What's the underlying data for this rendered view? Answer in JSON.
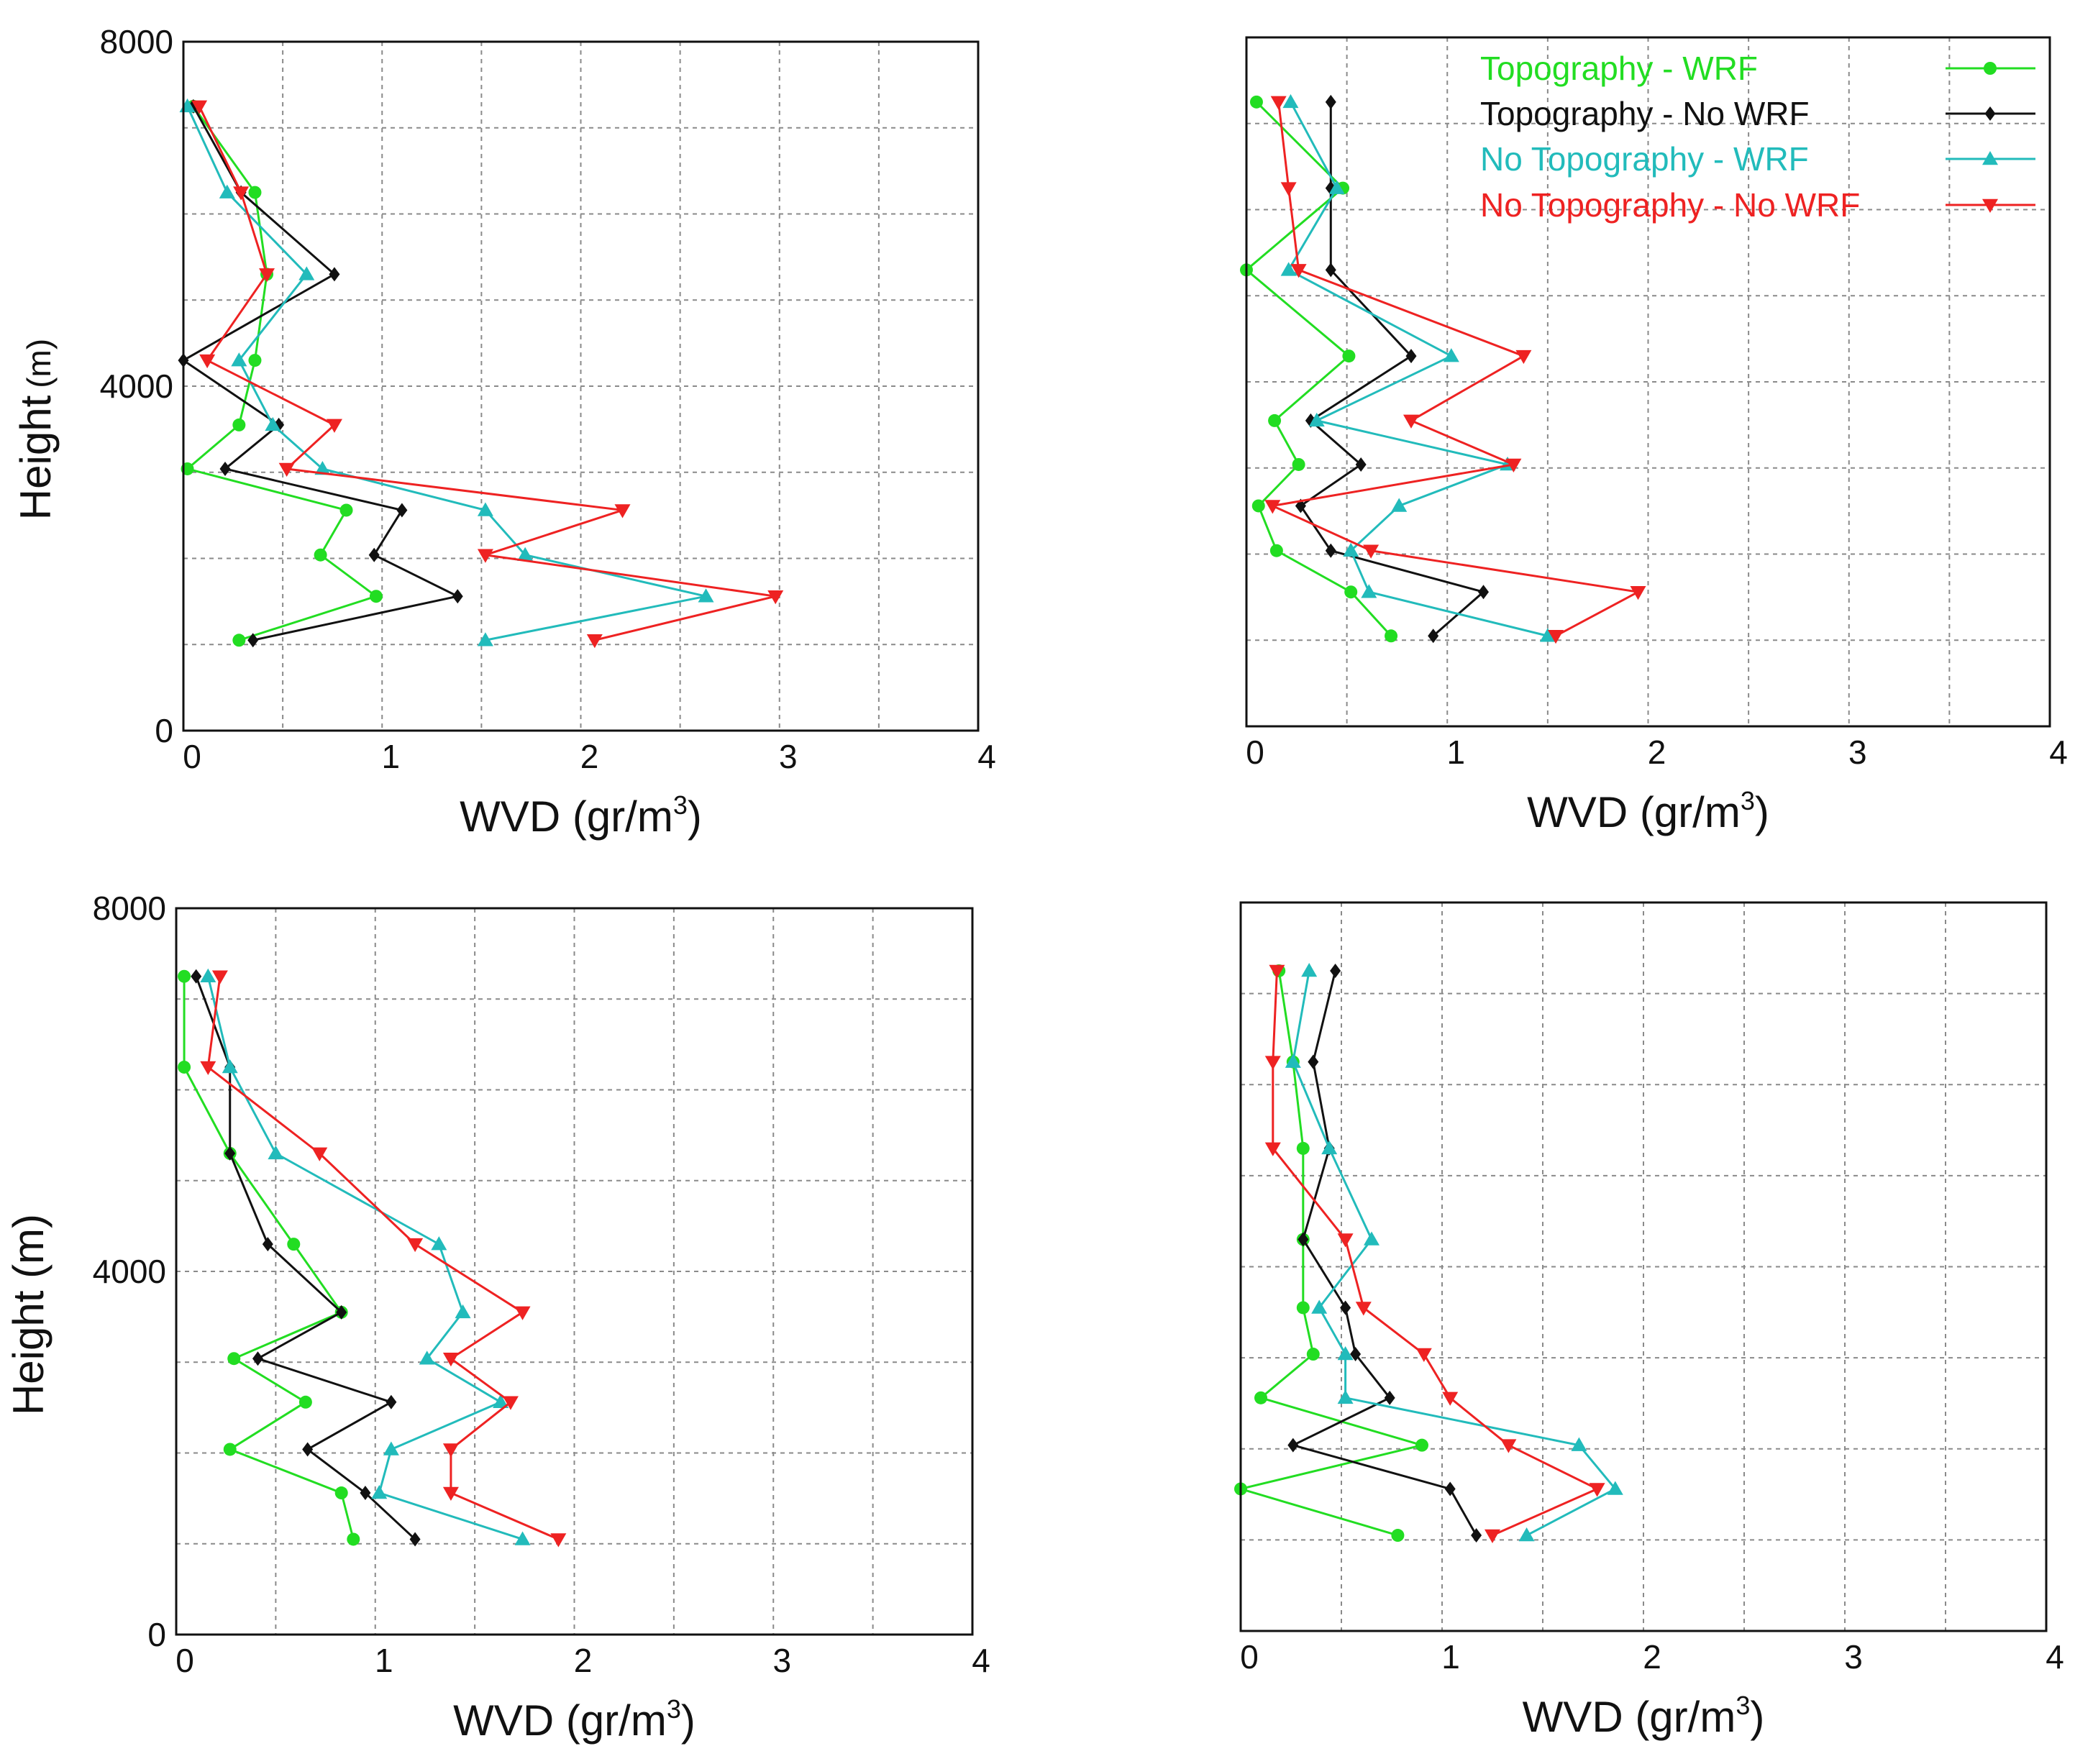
{
  "chart_data": [
    {
      "type": "line",
      "panel": "top-left",
      "xlabel": "WVD (gr/m",
      "xlabel_sup": "3",
      "xlabel_end": ")",
      "ylabel": "Height",
      "ylabel_unit": "(m)",
      "xlim": [
        0,
        4
      ],
      "ylim": [
        0,
        8000
      ],
      "xticks": [
        "0",
        "1",
        "2",
        "3",
        "4"
      ],
      "yticks": [
        "0",
        "4000",
        "8000"
      ],
      "grid": true,
      "series": [
        {
          "name": "Topography - WRF",
          "marker": "circle",
          "x": [
            0.28,
            0.97,
            0.69,
            0.82,
            0.02,
            0.28,
            0.36,
            0.42,
            0.36,
            0.05
          ],
          "y": [
            1050,
            1560,
            2040,
            2560,
            3040,
            3550,
            4300,
            5300,
            6250,
            7250
          ]
        },
        {
          "name": "Topography - No WRF",
          "marker": "diamond",
          "x": [
            0.35,
            1.38,
            0.96,
            1.1,
            0.21,
            0.48,
            0.0,
            0.76,
            0.29,
            0.05
          ],
          "y": [
            1050,
            1560,
            2040,
            2560,
            3040,
            3550,
            4300,
            5300,
            6250,
            7250
          ]
        },
        {
          "name": "No Topography - WRF",
          "marker": "triangle-up",
          "x": [
            1.52,
            2.63,
            1.72,
            1.52,
            0.7,
            0.45,
            0.28,
            0.62,
            0.22,
            0.02
          ],
          "y": [
            1050,
            1560,
            2040,
            2560,
            3040,
            3550,
            4300,
            5300,
            6250,
            7250
          ]
        },
        {
          "name": "No Topography - No WRF",
          "marker": "triangle-down",
          "x": [
            2.07,
            2.98,
            1.52,
            2.21,
            0.52,
            0.76,
            0.12,
            0.42,
            0.29,
            0.08
          ],
          "y": [
            1050,
            1560,
            2040,
            2560,
            3040,
            3550,
            4300,
            5300,
            6250,
            7250
          ]
        }
      ]
    },
    {
      "type": "line",
      "panel": "top-right",
      "xlabel": "WVD (gr/m",
      "xlabel_sup": "3",
      "xlabel_end": ")",
      "xlim": [
        0,
        4
      ],
      "ylim": [
        0,
        8000
      ],
      "xticks": [
        "0",
        "1",
        "2",
        "3",
        "4"
      ],
      "yticks": [],
      "grid": true,
      "legend": "top-right",
      "series": [
        {
          "name": "Topography - WRF",
          "marker": "circle",
          "x": [
            0.72,
            0.52,
            0.15,
            0.06,
            0.26,
            0.14,
            0.51,
            0.0,
            0.48,
            0.05
          ],
          "y": [
            1050,
            1560,
            2040,
            2560,
            3040,
            3550,
            4300,
            5300,
            6250,
            7250
          ]
        },
        {
          "name": "Topography - No WRF",
          "marker": "diamond",
          "x": [
            0.93,
            1.18,
            0.42,
            0.27,
            0.57,
            0.32,
            0.82,
            0.42,
            0.42,
            0.42
          ],
          "y": [
            1050,
            1560,
            2040,
            2560,
            3040,
            3550,
            4300,
            5300,
            6250,
            7250
          ]
        },
        {
          "name": "No Topography - WRF",
          "marker": "triangle-up",
          "x": [
            1.5,
            0.61,
            0.52,
            0.76,
            1.3,
            0.35,
            1.02,
            0.21,
            0.45,
            0.22
          ],
          "y": [
            1050,
            1560,
            2040,
            2560,
            3040,
            3550,
            4300,
            5300,
            6250,
            7250
          ]
        },
        {
          "name": "No Topography - No WRF",
          "marker": "triangle-down",
          "x": [
            1.54,
            1.95,
            0.62,
            0.13,
            1.33,
            0.82,
            1.38,
            0.26,
            0.21,
            0.16
          ],
          "y": [
            1050,
            1560,
            2040,
            2560,
            3040,
            3550,
            4300,
            5300,
            6250,
            7250
          ]
        }
      ]
    },
    {
      "type": "line",
      "panel": "bottom-left",
      "xlabel": "WVD (gr/m",
      "xlabel_sup": "3",
      "xlabel_end": ")",
      "ylabel": "Height (m)",
      "ylabel_unit": "",
      "xlim": [
        0,
        4
      ],
      "ylim": [
        0,
        8000
      ],
      "xticks": [
        "0",
        "1",
        "2",
        "3",
        "4"
      ],
      "yticks": [
        "0",
        "4000",
        "8000"
      ],
      "grid": true,
      "series": [
        {
          "name": "Topography - WRF",
          "marker": "circle",
          "x": [
            0.89,
            0.83,
            0.27,
            0.65,
            0.29,
            0.83,
            0.59,
            0.27,
            0.04,
            0.04
          ],
          "y": [
            1050,
            1560,
            2040,
            2560,
            3040,
            3550,
            4300,
            5300,
            6250,
            7250
          ]
        },
        {
          "name": "Topography - No WRF",
          "marker": "diamond",
          "x": [
            1.2,
            0.95,
            0.66,
            1.08,
            0.41,
            0.83,
            0.46,
            0.27,
            0.27,
            0.1
          ],
          "y": [
            1050,
            1560,
            2040,
            2560,
            3040,
            3550,
            4300,
            5300,
            6250,
            7250
          ]
        },
        {
          "name": "No Topography - WRF",
          "marker": "triangle-up",
          "x": [
            1.74,
            1.02,
            1.08,
            1.63,
            1.26,
            1.44,
            1.32,
            0.5,
            0.27,
            0.16
          ],
          "y": [
            1050,
            1560,
            2040,
            2560,
            3040,
            3550,
            4300,
            5300,
            6250,
            7250
          ]
        },
        {
          "name": "No Topography - No WRF",
          "marker": "triangle-down",
          "x": [
            1.92,
            1.38,
            1.38,
            1.68,
            1.38,
            1.74,
            1.2,
            0.72,
            0.16,
            0.22
          ],
          "y": [
            1050,
            1560,
            2040,
            2560,
            3040,
            3550,
            4300,
            5300,
            6250,
            7250
          ]
        }
      ]
    },
    {
      "type": "line",
      "panel": "bottom-right",
      "xlabel": "WVD (gr/m",
      "xlabel_sup": "3",
      "xlabel_end": ")",
      "xlim": [
        0,
        4
      ],
      "ylim": [
        0,
        8000
      ],
      "xticks": [
        "0",
        "1",
        "2",
        "3",
        "4"
      ],
      "yticks": [],
      "grid": true,
      "series": [
        {
          "name": "Topography - WRF",
          "marker": "circle",
          "x": [
            0.78,
            0.0,
            0.9,
            0.1,
            0.36,
            0.31,
            0.31,
            0.31,
            0.26,
            0.19
          ],
          "y": [
            1050,
            1560,
            2040,
            2560,
            3040,
            3550,
            4300,
            5300,
            6250,
            7250
          ]
        },
        {
          "name": "Topography - No WRF",
          "marker": "diamond",
          "x": [
            1.17,
            1.04,
            0.26,
            0.74,
            0.57,
            0.52,
            0.31,
            0.44,
            0.36,
            0.47
          ],
          "y": [
            1050,
            1560,
            2040,
            2560,
            3040,
            3550,
            4300,
            5300,
            6250,
            7250
          ]
        },
        {
          "name": "No Topography - WRF",
          "marker": "triangle-up",
          "x": [
            1.42,
            1.86,
            1.68,
            0.52,
            0.52,
            0.39,
            0.65,
            0.44,
            0.26,
            0.34
          ],
          "y": [
            1050,
            1560,
            2040,
            2560,
            3040,
            3550,
            4300,
            5300,
            6250,
            7250
          ]
        },
        {
          "name": "No Topography - No WRF",
          "marker": "triangle-down",
          "x": [
            1.25,
            1.77,
            1.33,
            1.04,
            0.91,
            0.61,
            0.52,
            0.16,
            0.16,
            0.18
          ],
          "y": [
            1050,
            1560,
            2040,
            2560,
            3040,
            3550,
            4300,
            5300,
            6250,
            7250
          ]
        }
      ]
    }
  ],
  "legend": {
    "entries": [
      {
        "label": "Topography - WRF",
        "color": "#22dd22",
        "marker": "circle"
      },
      {
        "label": "Topography - No WRF",
        "color": "#111111",
        "marker": "diamond"
      },
      {
        "label": "No Topography - WRF",
        "color": "#22bbbb",
        "marker": "triangle-up"
      },
      {
        "label": "No Topography - No WRF",
        "color": "#ee2222",
        "marker": "triangle-down"
      }
    ]
  },
  "colors": {
    "Topography - WRF": "#22dd22",
    "Topography - No WRF": "#111111",
    "No Topography - WRF": "#22bbbb",
    "No Topography - No WRF": "#ee2222"
  }
}
